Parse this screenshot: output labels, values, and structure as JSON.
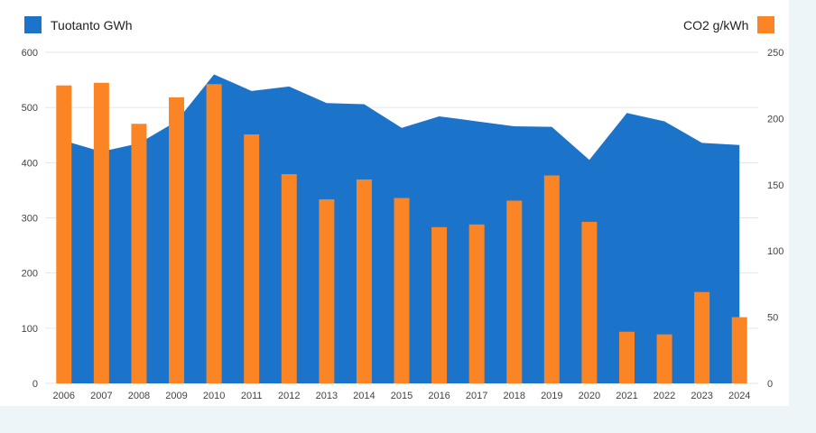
{
  "colors": {
    "area": "#1b74c9",
    "bar": "#fb8424",
    "grid": "#e2e6ea",
    "background": "#eef5f8"
  },
  "legend": {
    "left_label": "Tuotanto GWh",
    "right_label": "CO2 g/kWh"
  },
  "chart_data": {
    "type": "bar",
    "categories": [
      "2006",
      "2007",
      "2008",
      "2009",
      "2010",
      "2011",
      "2012",
      "2013",
      "2014",
      "2015",
      "2016",
      "2017",
      "2018",
      "2019",
      "2020",
      "2021",
      "2022",
      "2023",
      "2024"
    ],
    "series": [
      {
        "name": "Tuotanto GWh",
        "render": "area",
        "axis": "left",
        "values": [
          440,
          420,
          435,
          475,
          560,
          530,
          538,
          508,
          506,
          463,
          484,
          475,
          466,
          465,
          405,
          490,
          475,
          436,
          432
        ]
      },
      {
        "name": "CO2 g/kWh",
        "render": "bar",
        "axis": "right",
        "values": [
          225,
          227,
          196,
          216,
          226,
          188,
          158,
          139,
          154,
          140,
          118,
          120,
          138,
          157,
          122,
          39,
          37,
          69,
          50
        ]
      }
    ],
    "y_left": {
      "min": 0,
      "max": 600,
      "ticks": [
        0,
        100,
        200,
        300,
        400,
        500,
        600
      ]
    },
    "y_right": {
      "min": 0,
      "max": 250,
      "ticks": [
        0,
        50,
        100,
        150,
        200,
        250
      ]
    },
    "grid": true,
    "legend_position": "top"
  }
}
